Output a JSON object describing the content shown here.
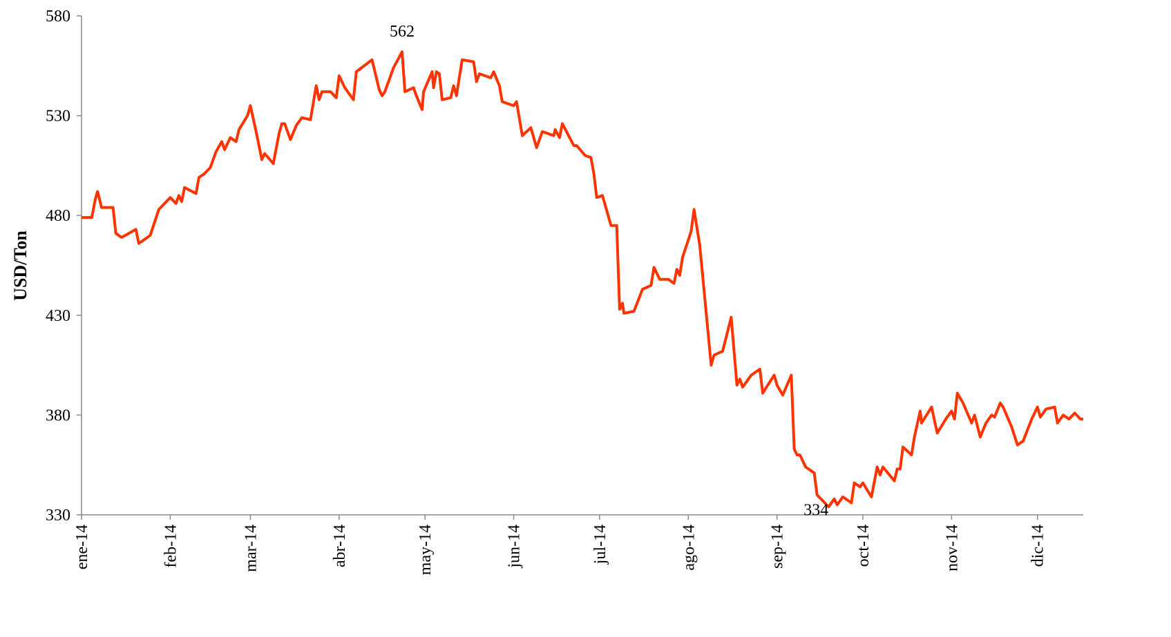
{
  "chart_data": {
    "type": "line",
    "ylabel": "USD/Ton",
    "x": [
      0,
      3.6,
      4.8,
      5.6,
      7,
      11,
      12,
      14,
      19,
      20,
      24,
      27,
      31,
      33,
      34,
      35,
      36,
      40,
      41,
      43,
      45,
      47,
      49,
      50,
      52,
      54,
      55,
      58,
      59,
      61,
      63,
      64,
      67,
      69,
      70,
      71,
      73,
      75,
      77,
      80,
      82,
      83,
      84,
      87,
      89,
      90,
      92,
      95,
      96,
      101.5,
      104,
      105,
      106,
      109,
      112,
      113,
      116,
      117,
      119,
      119.5,
      122.5,
      123,
      124,
      125,
      126,
      129,
      130,
      131,
      133,
      137,
      138,
      139,
      143,
      144,
      146,
      147,
      151,
      152,
      154,
      157,
      159,
      161,
      165,
      165.5,
      167,
      168,
      172,
      173,
      176,
      178,
      179,
      180,
      182,
      185,
      187,
      188,
      189,
      189.5,
      193,
      196,
      199,
      200,
      202,
      205,
      207,
      208,
      209,
      210,
      213,
      214,
      216,
      220,
      221,
      224,
      227,
      229,
      230,
      231,
      234,
      237,
      238,
      242,
      243,
      245,
      248,
      249,
      250,
      251,
      253,
      256,
      257,
      261,
      263,
      264,
      266,
      269,
      270,
      272,
      273,
      276,
      278,
      279,
      280,
      284,
      285,
      286,
      287,
      290,
      291,
      293,
      293.5,
      297,
      299,
      302,
      304,
      305,
      306,
      308,
      311,
      312,
      314,
      316,
      318,
      319,
      321,
      322,
      325,
      327,
      329,
      332,
      334,
      335,
      337,
      340,
      341,
      343,
      345,
      347,
      349,
      350
    ],
    "series": [
      {
        "name": "USD/Ton",
        "color": "#ff3300",
        "values": [
          479,
          479,
          488,
          492,
          484,
          484,
          471,
          469,
          473,
          466,
          470,
          483,
          489,
          486,
          490,
          487,
          494,
          491,
          499,
          501,
          504,
          512,
          517,
          513,
          519,
          517,
          523,
          530,
          535,
          522,
          508,
          511,
          506,
          521,
          526,
          526,
          518,
          525,
          529,
          528,
          545,
          538,
          542,
          542,
          539,
          550,
          544,
          538,
          552,
          558,
          543,
          540,
          542,
          554,
          562,
          542,
          544,
          540,
          533,
          542,
          552,
          544,
          552,
          551,
          538,
          539,
          545,
          540,
          558,
          557,
          547,
          551,
          549,
          552,
          545,
          537,
          535,
          537,
          520,
          524,
          514,
          522,
          520,
          523,
          519,
          526,
          515,
          515,
          510,
          509,
          501,
          489,
          490,
          475,
          475,
          433,
          436,
          431,
          432,
          443,
          445,
          454,
          448,
          448,
          446,
          453,
          450,
          459,
          472,
          483,
          465,
          405,
          410,
          412,
          429,
          395,
          398,
          394,
          400,
          403,
          391,
          400,
          395,
          390,
          400,
          363,
          360,
          360,
          354,
          351,
          340,
          334,
          338,
          335,
          339,
          336,
          346,
          344,
          346,
          339,
          354,
          350,
          354,
          347,
          353,
          353,
          364,
          360,
          369,
          382,
          376,
          384,
          371,
          378,
          382,
          378,
          391,
          386,
          376,
          380,
          369,
          376,
          380,
          379,
          386,
          384,
          374,
          365,
          367,
          378,
          384,
          379,
          383,
          384,
          376,
          380,
          378,
          381,
          378,
          378
        ]
      }
    ],
    "annotations": [
      {
        "x": 112,
        "value": 562
      },
      {
        "x": 261,
        "value": 334
      }
    ],
    "xlim": [
      0,
      350
    ],
    "xticks": [
      {
        "value": 0,
        "label": "ene-14"
      },
      {
        "value": 31,
        "label": "feb-14"
      },
      {
        "value": 59,
        "label": "mar-14"
      },
      {
        "value": 90,
        "label": "abr-14"
      },
      {
        "value": 120,
        "label": "may-14"
      },
      {
        "value": 151,
        "label": "jun-14"
      },
      {
        "value": 181,
        "label": "jul-14"
      },
      {
        "value": 212,
        "label": "ago-14"
      },
      {
        "value": 243,
        "label": "sep-14"
      },
      {
        "value": 273,
        "label": "oct-14"
      },
      {
        "value": 304,
        "label": "nov-14"
      },
      {
        "value": 334,
        "label": "dic-14"
      }
    ],
    "ylim": [
      330,
      580
    ],
    "yticks": [
      330,
      380,
      430,
      480,
      530,
      580
    ],
    "grid": false
  }
}
